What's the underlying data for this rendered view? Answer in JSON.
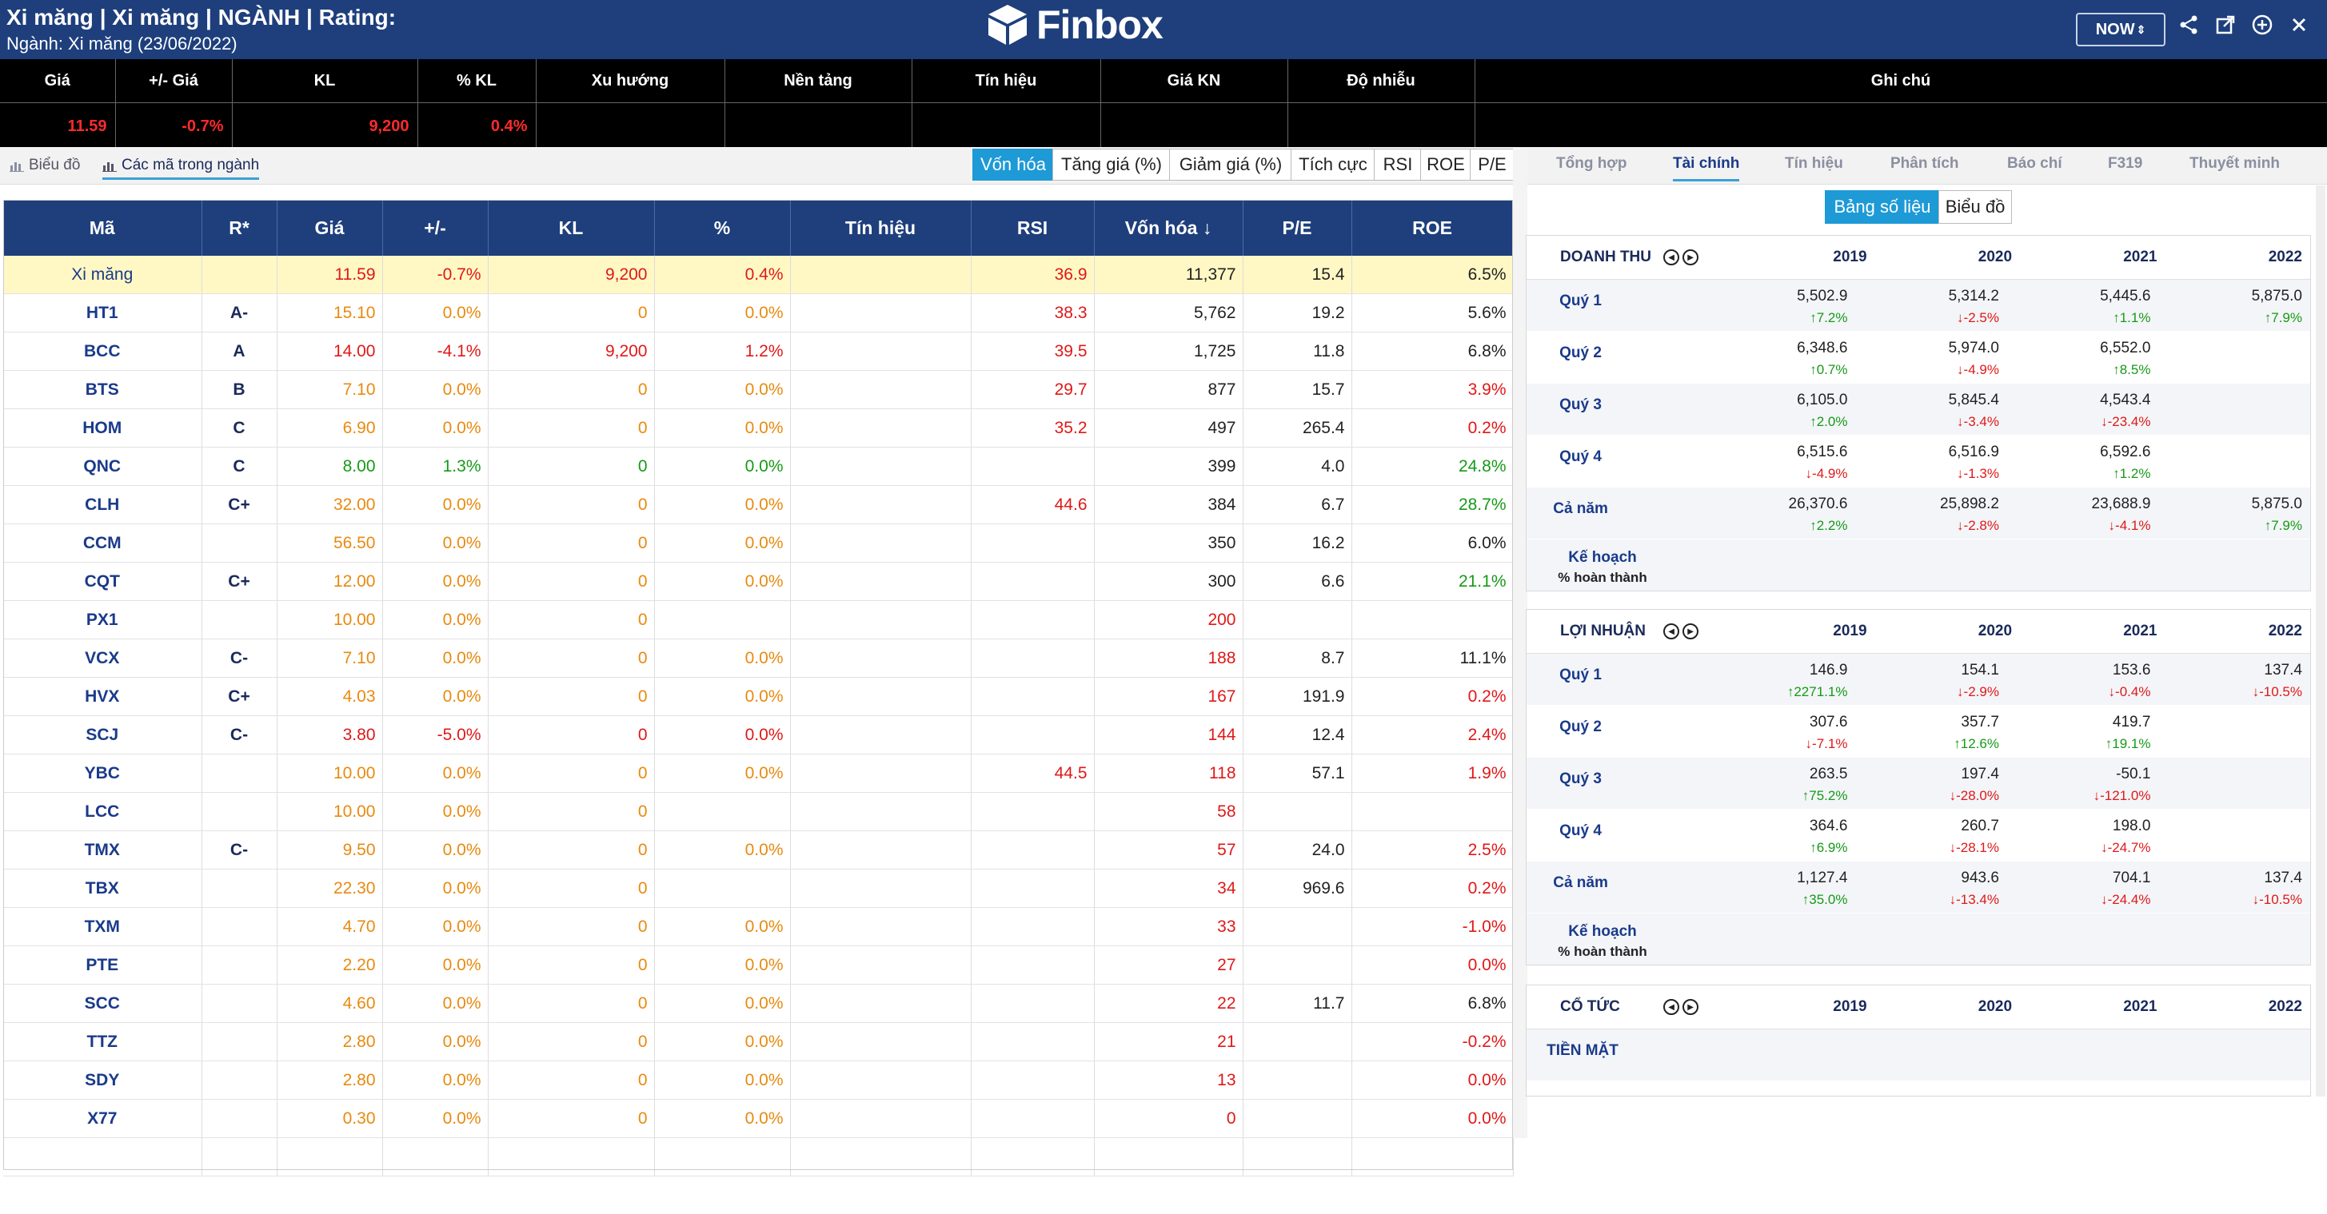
{
  "header": {
    "title": "Xi măng | Xi măng | NGÀNH | Rating:",
    "subtitle": "Ngành: Xi măng (23/06/2022)",
    "logo_text": "Finbox",
    "now_label": "NOW",
    "brand_color": "#1e3f7c",
    "accent_color": "#1e9ad6",
    "icons": [
      "share-icon",
      "external-link-icon",
      "add-circle-icon",
      "close-icon"
    ]
  },
  "summary": {
    "headers": [
      "Giá",
      "+/- Giá",
      "KL",
      "% KL",
      "Xu hướng",
      "Nền tảng",
      "Tín hiệu",
      "Giá KN",
      "Độ nhiễu",
      "Ghi chú"
    ],
    "values": [
      "11.59",
      "-0.7%",
      "9,200",
      "0.4%",
      "",
      "",
      "",
      "",
      "",
      ""
    ]
  },
  "left_tabs": [
    {
      "label": "Biểu đồ",
      "icon": "chart-icon"
    },
    {
      "label": "Các mã trong ngành",
      "icon": "chart-icon"
    }
  ],
  "sort_buttons": [
    "Vốn hóa",
    "Tăng giá (%)",
    "Giảm giá (%)",
    "Tích cực",
    "RSI",
    "ROE",
    "P/E"
  ],
  "table": {
    "headers": [
      "Mã",
      "R*",
      "Giá",
      "+/-",
      "KL",
      "%",
      "Tín hiệu",
      "RSI",
      "Vốn hóa",
      "P/E",
      "ROE"
    ],
    "sort_column": "Vốn hóa",
    "rows": [
      {
        "code": "Xi măng",
        "rating": "",
        "price": "11.59",
        "change": "-0.7%",
        "volume": "9,200",
        "pct": "0.4%",
        "signal": "",
        "rsi": "36.9",
        "cap": "11,377",
        "pe": "15.4",
        "roe": "6.5%"
      },
      {
        "code": "HT1",
        "rating": "A-",
        "price": "15.10",
        "change": "0.0%",
        "volume": "0",
        "pct": "0.0%",
        "signal": "",
        "rsi": "38.3",
        "cap": "5,762",
        "pe": "19.2",
        "roe": "5.6%"
      },
      {
        "code": "BCC",
        "rating": "A",
        "price": "14.00",
        "change": "-4.1%",
        "volume": "9,200",
        "pct": "1.2%",
        "signal": "",
        "rsi": "39.5",
        "cap": "1,725",
        "pe": "11.8",
        "roe": "6.8%"
      },
      {
        "code": "BTS",
        "rating": "B",
        "price": "7.10",
        "change": "0.0%",
        "volume": "0",
        "pct": "0.0%",
        "signal": "",
        "rsi": "29.7",
        "cap": "877",
        "pe": "15.7",
        "roe": "3.9%"
      },
      {
        "code": "HOM",
        "rating": "C",
        "price": "6.90",
        "change": "0.0%",
        "volume": "0",
        "pct": "0.0%",
        "signal": "",
        "rsi": "35.2",
        "cap": "497",
        "pe": "265.4",
        "roe": "0.2%"
      },
      {
        "code": "QNC",
        "rating": "C",
        "price": "8.00",
        "change": "1.3%",
        "volume": "0",
        "pct": "0.0%",
        "signal": "",
        "rsi": "",
        "cap": "399",
        "pe": "4.0",
        "roe": "24.8%"
      },
      {
        "code": "CLH",
        "rating": "C+",
        "price": "32.00",
        "change": "0.0%",
        "volume": "0",
        "pct": "0.0%",
        "signal": "",
        "rsi": "44.6",
        "cap": "384",
        "pe": "6.7",
        "roe": "28.7%"
      },
      {
        "code": "CCM",
        "rating": "",
        "price": "56.50",
        "change": "0.0%",
        "volume": "0",
        "pct": "0.0%",
        "signal": "",
        "rsi": "",
        "cap": "350",
        "pe": "16.2",
        "roe": "6.0%"
      },
      {
        "code": "CQT",
        "rating": "C+",
        "price": "12.00",
        "change": "0.0%",
        "volume": "0",
        "pct": "0.0%",
        "signal": "",
        "rsi": "",
        "cap": "300",
        "pe": "6.6",
        "roe": "21.1%"
      },
      {
        "code": "PX1",
        "rating": "",
        "price": "10.00",
        "change": "0.0%",
        "volume": "0",
        "pct": "",
        "signal": "",
        "rsi": "",
        "cap": "200",
        "pe": "",
        "roe": ""
      },
      {
        "code": "VCX",
        "rating": "C-",
        "price": "7.10",
        "change": "0.0%",
        "volume": "0",
        "pct": "0.0%",
        "signal": "",
        "rsi": "",
        "cap": "188",
        "pe": "8.7",
        "roe": "11.1%"
      },
      {
        "code": "HVX",
        "rating": "C+",
        "price": "4.03",
        "change": "0.0%",
        "volume": "0",
        "pct": "0.0%",
        "signal": "",
        "rsi": "",
        "cap": "167",
        "pe": "191.9",
        "roe": "0.2%"
      },
      {
        "code": "SCJ",
        "rating": "C-",
        "price": "3.80",
        "change": "-5.0%",
        "volume": "0",
        "pct": "0.0%",
        "signal": "",
        "rsi": "",
        "cap": "144",
        "pe": "12.4",
        "roe": "2.4%"
      },
      {
        "code": "YBC",
        "rating": "",
        "price": "10.00",
        "change": "0.0%",
        "volume": "0",
        "pct": "0.0%",
        "signal": "",
        "rsi": "44.5",
        "cap": "118",
        "pe": "57.1",
        "roe": "1.9%"
      },
      {
        "code": "LCC",
        "rating": "",
        "price": "10.00",
        "change": "0.0%",
        "volume": "0",
        "pct": "",
        "signal": "",
        "rsi": "",
        "cap": "58",
        "pe": "",
        "roe": ""
      },
      {
        "code": "TMX",
        "rating": "C-",
        "price": "9.50",
        "change": "0.0%",
        "volume": "0",
        "pct": "0.0%",
        "signal": "",
        "rsi": "",
        "cap": "57",
        "pe": "24.0",
        "roe": "2.5%"
      },
      {
        "code": "TBX",
        "rating": "",
        "price": "22.30",
        "change": "0.0%",
        "volume": "0",
        "pct": "",
        "signal": "",
        "rsi": "",
        "cap": "34",
        "pe": "969.6",
        "roe": "0.2%"
      },
      {
        "code": "TXM",
        "rating": "",
        "price": "4.70",
        "change": "0.0%",
        "volume": "0",
        "pct": "0.0%",
        "signal": "",
        "rsi": "",
        "cap": "33",
        "pe": "",
        "roe": "-1.0%"
      },
      {
        "code": "PTE",
        "rating": "",
        "price": "2.20",
        "change": "0.0%",
        "volume": "0",
        "pct": "0.0%",
        "signal": "",
        "rsi": "",
        "cap": "27",
        "pe": "",
        "roe": "0.0%"
      },
      {
        "code": "SCC",
        "rating": "",
        "price": "4.60",
        "change": "0.0%",
        "volume": "0",
        "pct": "0.0%",
        "signal": "",
        "rsi": "",
        "cap": "22",
        "pe": "11.7",
        "roe": "6.8%"
      },
      {
        "code": "TTZ",
        "rating": "",
        "price": "2.80",
        "change": "0.0%",
        "volume": "0",
        "pct": "0.0%",
        "signal": "",
        "rsi": "",
        "cap": "21",
        "pe": "",
        "roe": "-0.2%"
      },
      {
        "code": "SDY",
        "rating": "",
        "price": "2.80",
        "change": "0.0%",
        "volume": "0",
        "pct": "0.0%",
        "signal": "",
        "rsi": "",
        "cap": "13",
        "pe": "",
        "roe": "0.0%"
      },
      {
        "code": "X77",
        "rating": "",
        "price": "0.30",
        "change": "0.0%",
        "volume": "0",
        "pct": "0.0%",
        "signal": "",
        "rsi": "",
        "cap": "0",
        "pe": "",
        "roe": "0.0%"
      }
    ]
  },
  "right_tabs": [
    "Tổng hợp",
    "Tài chính",
    "Tín hiệu",
    "Phân tích",
    "Báo chí",
    "F319",
    "Thuyết minh"
  ],
  "active_right_tab": "Tài chính",
  "sub_toggle": [
    "Bảng số liệu",
    "Biểu đồ"
  ],
  "financials": [
    {
      "title": "DOANH THU",
      "years": [
        "2019",
        "2020",
        "2021",
        "2022"
      ],
      "rows": [
        {
          "label": "Quý 1",
          "values": [
            {
              "v": "5,502.9",
              "c": "7.2%",
              "d": "up"
            },
            {
              "v": "5,314.2",
              "c": "-2.5%",
              "d": "down"
            },
            {
              "v": "5,445.6",
              "c": "1.1%",
              "d": "up"
            },
            {
              "v": "5,875.0",
              "c": "7.9%",
              "d": "up"
            }
          ]
        },
        {
          "label": "Quý 2",
          "values": [
            {
              "v": "6,348.6",
              "c": "0.7%",
              "d": "up"
            },
            {
              "v": "5,974.0",
              "c": "-4.9%",
              "d": "down"
            },
            {
              "v": "6,552.0",
              "c": "8.5%",
              "d": "up"
            },
            {
              "v": "",
              "c": "",
              "d": ""
            }
          ]
        },
        {
          "label": "Quý 3",
          "values": [
            {
              "v": "6,105.0",
              "c": "2.0%",
              "d": "up"
            },
            {
              "v": "5,845.4",
              "c": "-3.4%",
              "d": "down"
            },
            {
              "v": "4,543.4",
              "c": "-23.4%",
              "d": "down"
            },
            {
              "v": "",
              "c": "",
              "d": ""
            }
          ]
        },
        {
          "label": "Quý 4",
          "values": [
            {
              "v": "6,515.6",
              "c": "-4.9%",
              "d": "down"
            },
            {
              "v": "6,516.9",
              "c": "-1.3%",
              "d": "down"
            },
            {
              "v": "6,592.6",
              "c": "1.2%",
              "d": "up"
            },
            {
              "v": "",
              "c": "",
              "d": ""
            }
          ]
        },
        {
          "label": "Cả năm",
          "values": [
            {
              "v": "26,370.6",
              "c": "2.2%",
              "d": "up"
            },
            {
              "v": "25,898.2",
              "c": "-2.8%",
              "d": "down"
            },
            {
              "v": "23,688.9",
              "c": "-4.1%",
              "d": "down"
            },
            {
              "v": "5,875.0",
              "c": "7.9%",
              "d": "up"
            }
          ]
        }
      ],
      "plan_label": "Kế hoạch",
      "plan_sub": "% hoàn thành"
    },
    {
      "title": "LỢI NHUẬN",
      "years": [
        "2019",
        "2020",
        "2021",
        "2022"
      ],
      "rows": [
        {
          "label": "Quý 1",
          "values": [
            {
              "v": "146.9",
              "c": "2271.1%",
              "d": "up"
            },
            {
              "v": "154.1",
              "c": "-2.9%",
              "d": "down"
            },
            {
              "v": "153.6",
              "c": "-0.4%",
              "d": "down"
            },
            {
              "v": "137.4",
              "c": "-10.5%",
              "d": "down"
            }
          ]
        },
        {
          "label": "Quý 2",
          "values": [
            {
              "v": "307.6",
              "c": "-7.1%",
              "d": "down"
            },
            {
              "v": "357.7",
              "c": "12.6%",
              "d": "up"
            },
            {
              "v": "419.7",
              "c": "19.1%",
              "d": "up"
            },
            {
              "v": "",
              "c": "",
              "d": ""
            }
          ]
        },
        {
          "label": "Quý 3",
          "values": [
            {
              "v": "263.5",
              "c": "75.2%",
              "d": "up"
            },
            {
              "v": "197.4",
              "c": "-28.0%",
              "d": "down"
            },
            {
              "v": "-50.1",
              "c": "-121.0%",
              "d": "down"
            },
            {
              "v": "",
              "c": "",
              "d": ""
            }
          ]
        },
        {
          "label": "Quý 4",
          "values": [
            {
              "v": "364.6",
              "c": "6.9%",
              "d": "up"
            },
            {
              "v": "260.7",
              "c": "-28.1%",
              "d": "down"
            },
            {
              "v": "198.0",
              "c": "-24.7%",
              "d": "down"
            },
            {
              "v": "",
              "c": "",
              "d": ""
            }
          ]
        },
        {
          "label": "Cả năm",
          "values": [
            {
              "v": "1,127.4",
              "c": "35.0%",
              "d": "up"
            },
            {
              "v": "943.6",
              "c": "-13.4%",
              "d": "down"
            },
            {
              "v": "704.1",
              "c": "-24.4%",
              "d": "down"
            },
            {
              "v": "137.4",
              "c": "-10.5%",
              "d": "down"
            }
          ]
        }
      ],
      "plan_label": "Kế hoạch",
      "plan_sub": "% hoàn thành"
    },
    {
      "title": "CỔ TỨC",
      "years": [
        "2019",
        "2020",
        "2021",
        "2022"
      ],
      "rows": [
        {
          "label": "TIỀN MẶT",
          "values": []
        }
      ]
    }
  ]
}
